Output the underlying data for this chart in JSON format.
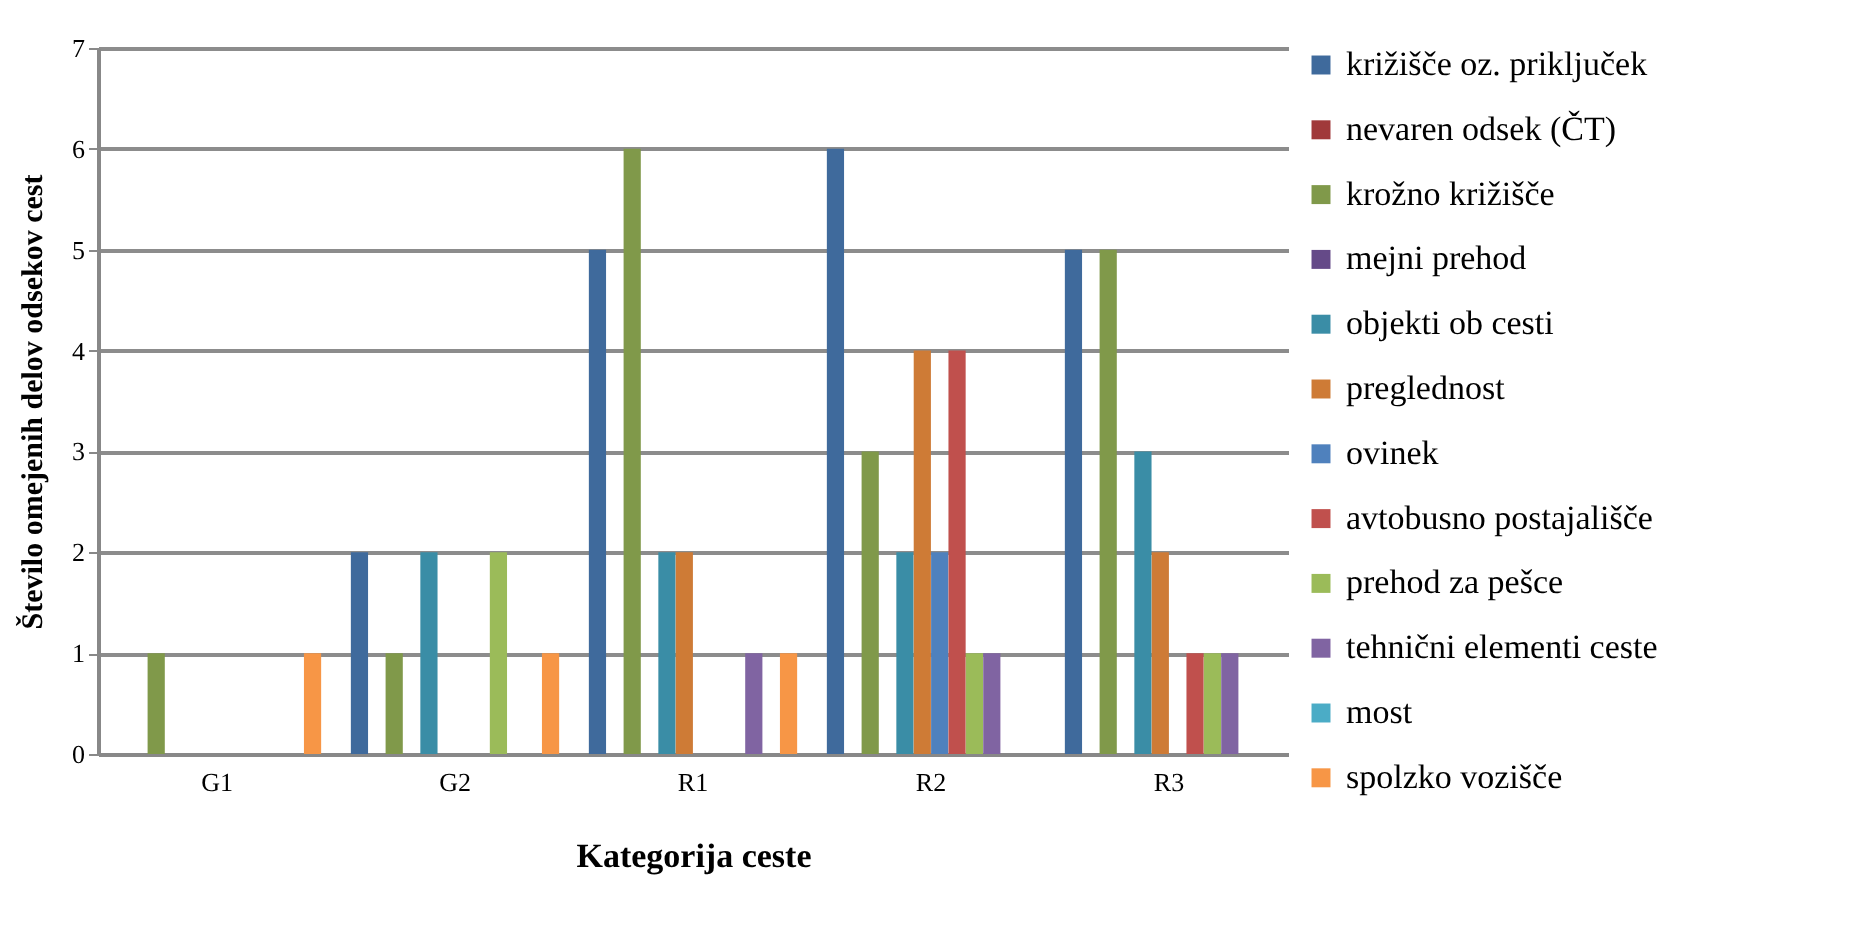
{
  "chart_data": {
    "type": "bar",
    "xlabel": "Kategorija ceste",
    "ylabel": "Število omejenih delov odsekov cest",
    "categories": [
      "G1",
      "G2",
      "R1",
      "R2",
      "R3"
    ],
    "series": [
      {
        "name": "križišče oz. priključek",
        "color": "#3f6a9c",
        "values": [
          0,
          2,
          5,
          6,
          5
        ]
      },
      {
        "name": "nevaren odsek (ČT)",
        "color": "#a0393a",
        "values": [
          0,
          0,
          0,
          0,
          0
        ]
      },
      {
        "name": "krožno križišče",
        "color": "#80994a",
        "values": [
          1,
          1,
          6,
          3,
          5
        ]
      },
      {
        "name": "mejni prehod",
        "color": "#654a88",
        "values": [
          0,
          0,
          0,
          0,
          0
        ]
      },
      {
        "name": "objekti ob cesti",
        "color": "#3a8da6",
        "values": [
          0,
          2,
          2,
          2,
          3
        ]
      },
      {
        "name": "preglednost",
        "color": "#ce7b36",
        "values": [
          0,
          0,
          2,
          4,
          2
        ]
      },
      {
        "name": "ovinek",
        "color": "#4f81bd",
        "values": [
          0,
          0,
          0,
          2,
          0
        ]
      },
      {
        "name": "avtobusno postajališče",
        "color": "#c0504d",
        "values": [
          0,
          0,
          0,
          4,
          1
        ]
      },
      {
        "name": "prehod za pešce",
        "color": "#9bbb59",
        "values": [
          0,
          2,
          0,
          1,
          1
        ]
      },
      {
        "name": "tehnični elementi ceste",
        "color": "#8064a2",
        "values": [
          0,
          0,
          1,
          1,
          1
        ]
      },
      {
        "name": "most",
        "color": "#4bacc6",
        "values": [
          0,
          0,
          0,
          0,
          0
        ]
      },
      {
        "name": "spolzko vozišče",
        "color": "#f79646",
        "values": [
          1,
          1,
          1,
          0,
          0
        ]
      }
    ],
    "ylim": [
      0,
      7
    ],
    "yticks": [
      0,
      1,
      2,
      3,
      4,
      5,
      6,
      7
    ],
    "grid": "y",
    "legend": "right"
  }
}
